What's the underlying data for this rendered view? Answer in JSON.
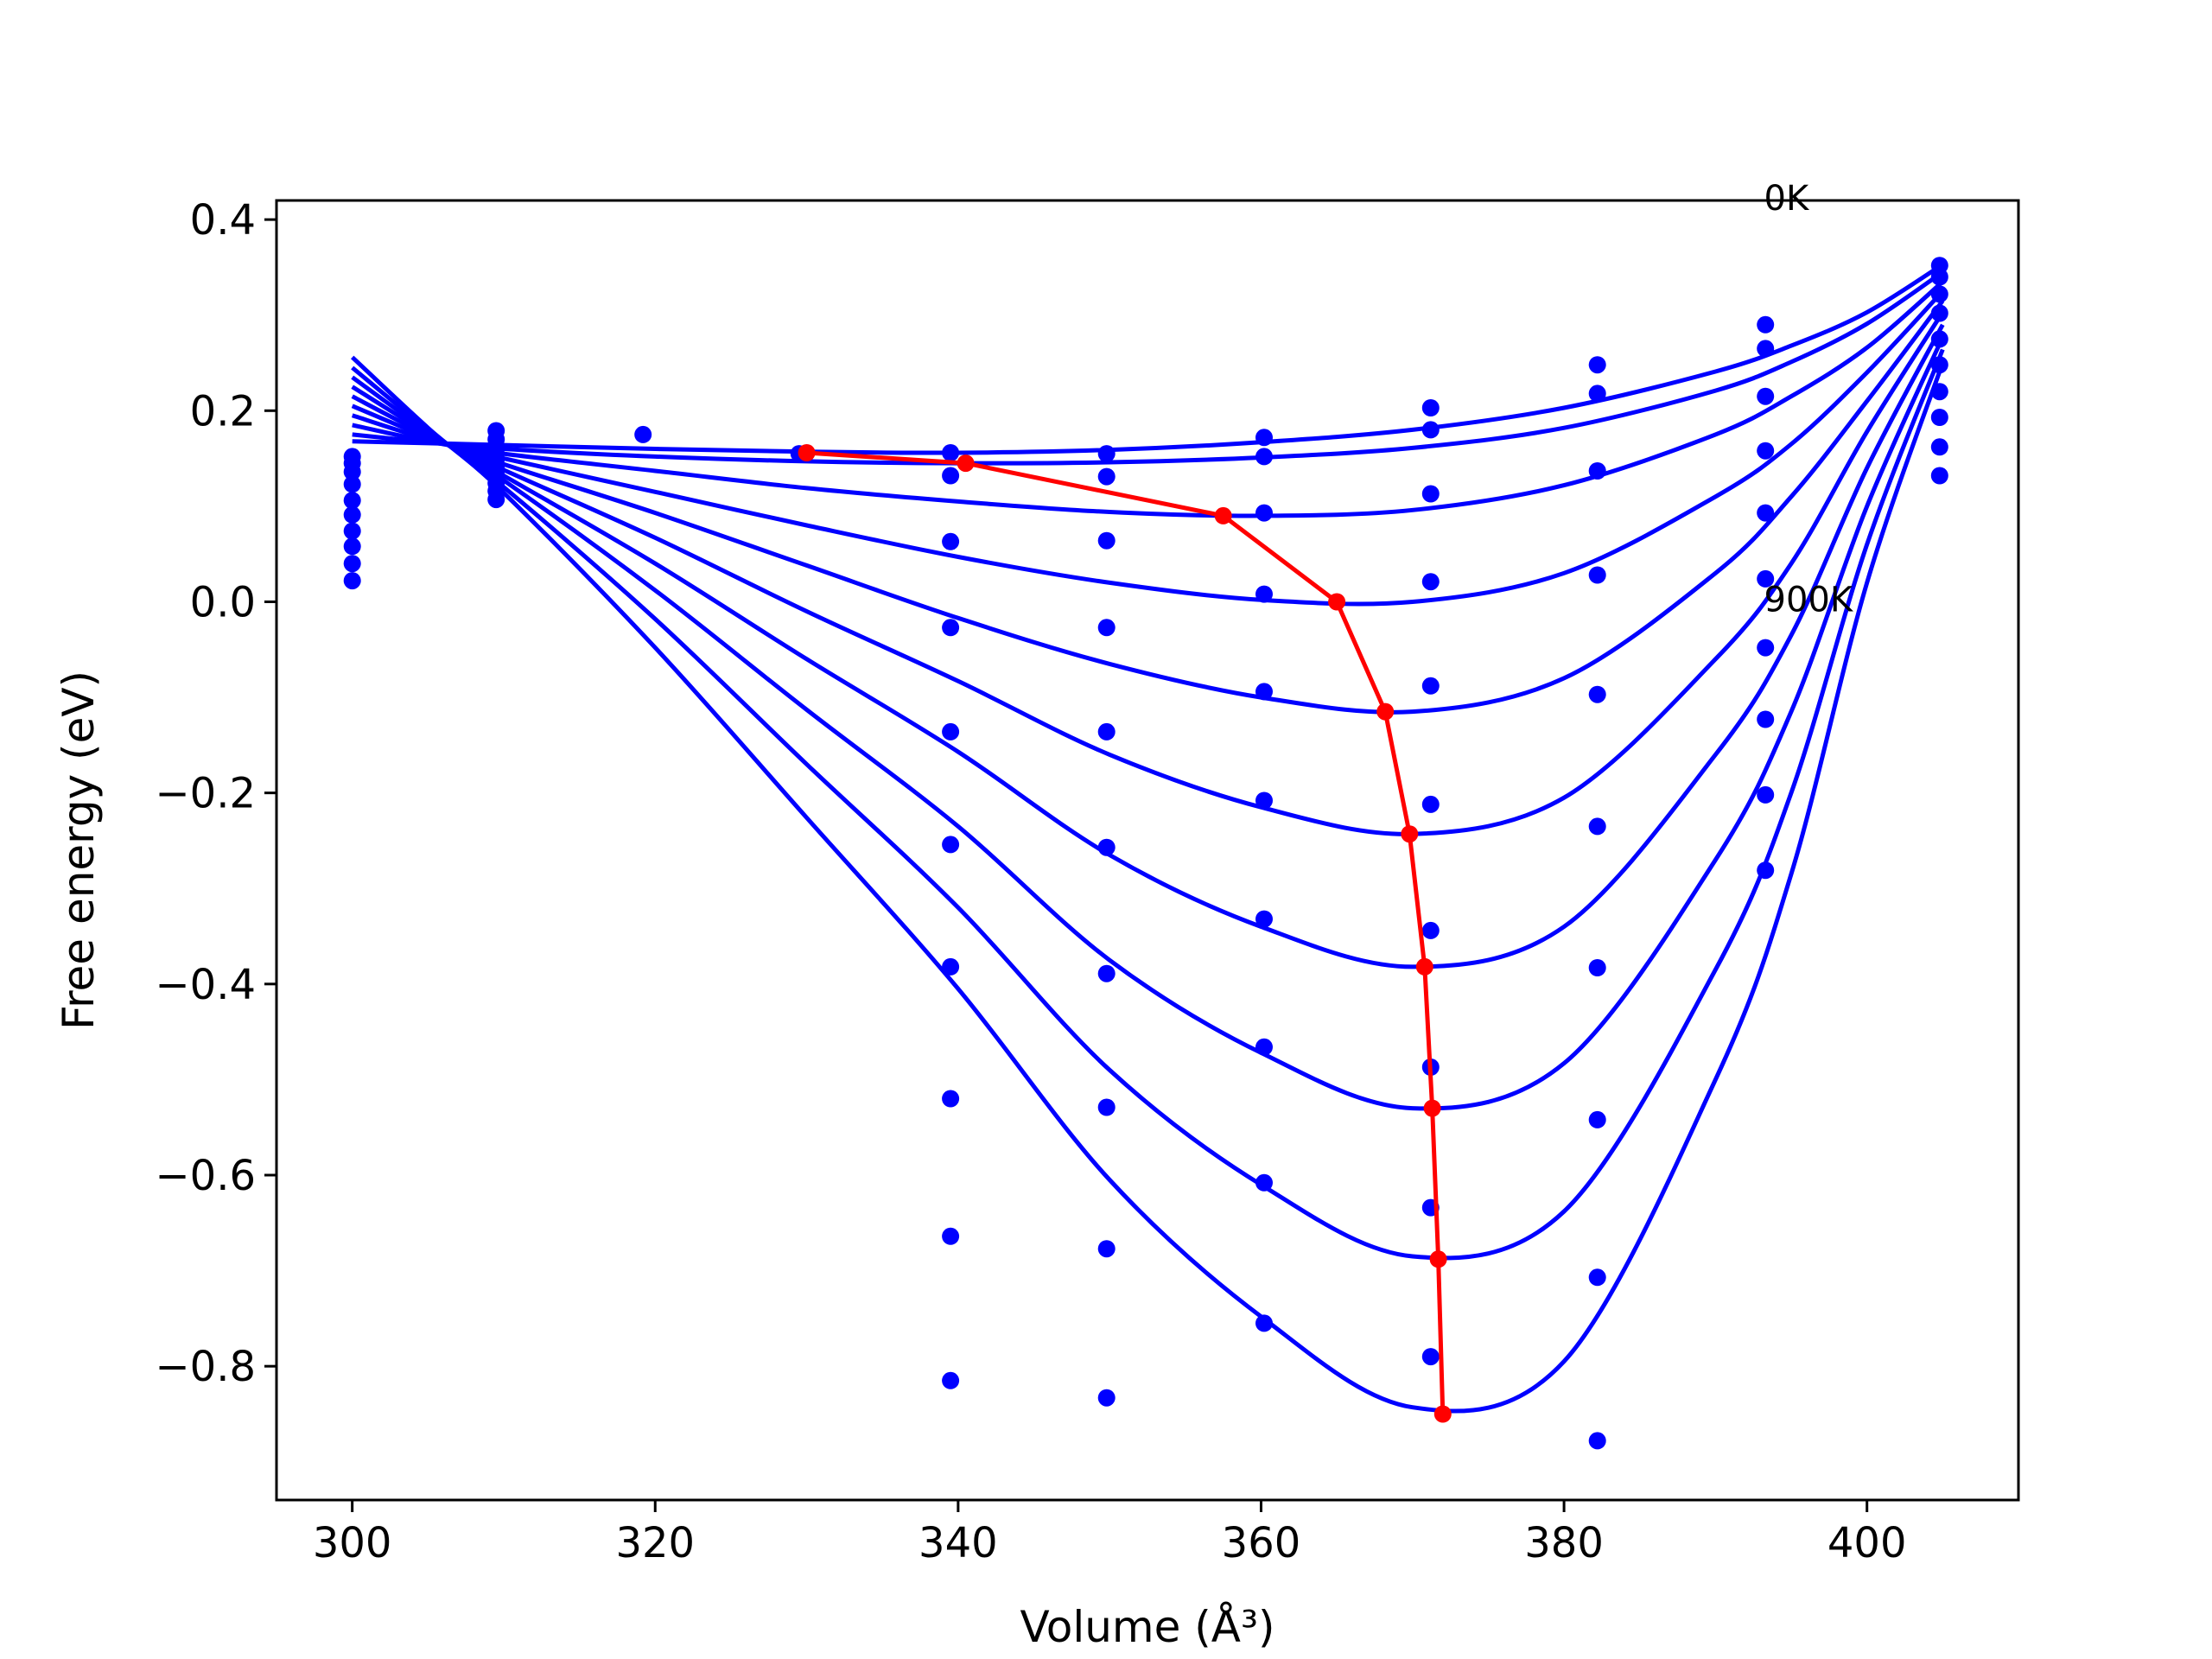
{
  "chart_data": {
    "type": "line",
    "xlabel": "Volume (Å³)",
    "ylabel": "Free energy (eV)",
    "xlim": [
      295,
      410
    ],
    "ylim": [
      -0.94,
      0.42
    ],
    "x_ticks": [
      300,
      320,
      340,
      360,
      380,
      400
    ],
    "x_tick_labels": [
      "300",
      "320",
      "340",
      "360",
      "380",
      "400"
    ],
    "y_ticks": [
      0.4,
      0.2,
      0.0,
      -0.2,
      -0.4,
      -0.6,
      -0.8
    ],
    "y_tick_labels": [
      "0.4",
      "0.2",
      "0.0",
      "−0.2",
      "−0.4",
      "−0.6",
      "−0.8"
    ],
    "grid": false,
    "colors": {
      "curves": "#0000ff",
      "minima": "#ff0000",
      "axes": "#000000"
    },
    "annotations": [
      {
        "text": "0K",
        "x": 393.2,
        "y": 0.41
      },
      {
        "text": "900K",
        "x": 393.2,
        "y": -0.01
      }
    ],
    "fit_curves": [
      {
        "x": [
          300,
          305,
          310,
          320,
          330,
          340,
          350,
          360,
          370,
          380,
          390,
          395,
          400,
          405
        ],
        "y": [
          0.168,
          0.166,
          0.164,
          0.16,
          0.157,
          0.156,
          0.159,
          0.167,
          0.18,
          0.203,
          0.241,
          0.268,
          0.303,
          0.353
        ]
      },
      {
        "x": [
          300,
          305,
          310,
          320,
          330,
          340,
          350,
          360,
          370,
          380,
          390,
          395,
          400,
          405
        ],
        "y": [
          0.175,
          0.167,
          0.16,
          0.152,
          0.147,
          0.145,
          0.146,
          0.151,
          0.161,
          0.182,
          0.221,
          0.251,
          0.291,
          0.345
        ]
      },
      {
        "x": [
          300,
          305,
          310,
          320,
          330,
          340,
          350,
          360,
          370,
          380,
          390,
          395,
          400,
          405
        ],
        "y": [
          0.185,
          0.168,
          0.155,
          0.137,
          0.119,
          0.105,
          0.094,
          0.09,
          0.096,
          0.122,
          0.175,
          0.215,
          0.266,
          0.335
        ]
      },
      {
        "x": [
          300,
          305,
          310,
          320,
          330,
          340,
          350,
          360,
          370,
          380,
          390,
          395,
          400,
          405
        ],
        "y": [
          0.195,
          0.17,
          0.15,
          0.115,
          0.08,
          0.047,
          0.02,
          0.002,
          0.0,
          0.03,
          0.11,
          0.165,
          0.24,
          0.325
        ]
      },
      {
        "x": [
          300,
          305,
          310,
          320,
          330,
          340,
          350,
          360,
          370,
          380,
          390,
          395,
          400,
          405
        ],
        "y": [
          0.205,
          0.172,
          0.144,
          0.093,
          0.038,
          -0.017,
          -0.065,
          -0.1,
          -0.115,
          -0.08,
          0.03,
          0.11,
          0.21,
          0.315
        ]
      },
      {
        "x": [
          300,
          305,
          310,
          320,
          330,
          340,
          350,
          360,
          370,
          380,
          390,
          395,
          400,
          405
        ],
        "y": [
          0.215,
          0.174,
          0.138,
          0.067,
          -0.01,
          -0.083,
          -0.16,
          -0.215,
          -0.243,
          -0.205,
          -0.06,
          0.04,
          0.178,
          0.303
        ]
      },
      {
        "x": [
          300,
          305,
          310,
          320,
          330,
          340,
          350,
          360,
          370,
          380,
          390,
          395,
          400,
          405
        ],
        "y": [
          0.225,
          0.176,
          0.132,
          0.04,
          -0.06,
          -0.157,
          -0.265,
          -0.34,
          -0.382,
          -0.34,
          -0.16,
          -0.035,
          0.14,
          0.29
        ]
      },
      {
        "x": [
          300,
          305,
          310,
          320,
          330,
          340,
          350,
          360,
          370,
          380,
          390,
          395,
          400,
          405
        ],
        "y": [
          0.235,
          0.178,
          0.127,
          0.012,
          -0.113,
          -0.235,
          -0.375,
          -0.472,
          -0.53,
          -0.483,
          -0.27,
          -0.115,
          0.1,
          0.277
        ]
      },
      {
        "x": [
          300,
          305,
          310,
          320,
          330,
          340,
          350,
          360,
          370,
          380,
          390,
          395,
          400,
          405
        ],
        "y": [
          0.245,
          0.18,
          0.12,
          -0.018,
          -0.17,
          -0.32,
          -0.49,
          -0.61,
          -0.685,
          -0.638,
          -0.385,
          -0.2,
          0.06,
          0.264
        ]
      },
      {
        "x": [
          300,
          305,
          310,
          320,
          330,
          340,
          350,
          360,
          370,
          380,
          390,
          395,
          400,
          405
        ],
        "y": [
          0.256,
          0.182,
          0.114,
          -0.048,
          -0.226,
          -0.405,
          -0.605,
          -0.748,
          -0.843,
          -0.795,
          -0.5,
          -0.285,
          0.02,
          0.25
        ]
      }
    ],
    "data_points": [
      {
        "x": [
          300,
          309.5,
          319.2,
          329.5,
          339.5,
          349.8,
          360.2,
          371.2,
          382.2,
          393.3,
          404.8
        ],
        "y": [
          0.152,
          0.179,
          0.175,
          0.155,
          0.156,
          0.155,
          0.172,
          0.203,
          0.248,
          0.29,
          0.352
        ]
      },
      {
        "x": [
          300,
          309.5,
          339.5,
          349.8,
          360.2,
          371.2,
          382.2,
          393.3,
          404.8
        ],
        "y": [
          0.145,
          0.17,
          0.132,
          0.131,
          0.152,
          0.18,
          0.218,
          0.265,
          0.34
        ]
      },
      {
        "x": [
          300,
          309.5,
          339.5,
          349.8,
          360.2,
          371.2,
          382.2,
          393.3,
          404.8
        ],
        "y": [
          0.136,
          0.163,
          0.063,
          0.064,
          0.093,
          0.113,
          0.137,
          0.215,
          0.322
        ]
      },
      {
        "x": [
          300,
          309.5,
          339.5,
          349.8,
          360.2,
          371.2,
          382.2,
          393.3,
          404.8
        ],
        "y": [
          0.123,
          0.155,
          -0.027,
          -0.027,
          0.008,
          0.021,
          0.028,
          0.158,
          0.302
        ]
      },
      {
        "x": [
          300,
          309.5,
          339.5,
          349.8,
          360.2,
          371.2,
          382.2,
          393.3,
          404.8
        ],
        "y": [
          0.106,
          0.149,
          -0.136,
          -0.136,
          -0.094,
          -0.088,
          -0.097,
          0.093,
          0.275
        ]
      },
      {
        "x": [
          300,
          309.5,
          339.5,
          349.8,
          360.2,
          371.2,
          382.2,
          393.3,
          404.8
        ],
        "y": [
          0.091,
          0.141,
          -0.254,
          -0.257,
          -0.208,
          -0.212,
          -0.235,
          0.024,
          0.248
        ]
      },
      {
        "x": [
          300,
          309.5,
          339.5,
          349.8,
          360.2,
          371.2,
          382.2,
          393.3,
          404.8
        ],
        "y": [
          0.074,
          0.133,
          -0.382,
          -0.389,
          -0.332,
          -0.344,
          -0.383,
          -0.048,
          0.22
        ]
      },
      {
        "x": [
          300,
          309.5,
          339.5,
          349.8,
          360.2,
          371.2,
          382.2,
          393.3,
          404.8
        ],
        "y": [
          0.058,
          0.124,
          -0.52,
          -0.529,
          -0.466,
          -0.487,
          -0.542,
          -0.123,
          0.193
        ]
      },
      {
        "x": [
          300,
          309.5,
          339.5,
          349.8,
          360.2,
          371.2,
          382.2,
          393.3,
          404.8
        ],
        "y": [
          0.04,
          0.116,
          -0.664,
          -0.677,
          -0.608,
          -0.634,
          -0.707,
          -0.202,
          0.162
        ]
      },
      {
        "x": [
          300,
          309.5,
          339.5,
          349.8,
          360.2,
          371.2,
          382.2,
          393.3,
          404.8
        ],
        "y": [
          0.022,
          0.107,
          -0.815,
          -0.833,
          -0.755,
          -0.79,
          -0.878,
          -0.281,
          0.132
        ]
      }
    ],
    "minima_path": {
      "x": [
        330.0,
        340.5,
        357.5,
        365.0,
        368.2,
        369.8,
        370.8,
        371.3,
        371.7,
        372.0
      ],
      "y": [
        0.156,
        0.145,
        0.09,
        0.0,
        -0.115,
        -0.243,
        -0.382,
        -0.53,
        -0.688,
        -0.85
      ]
    }
  }
}
